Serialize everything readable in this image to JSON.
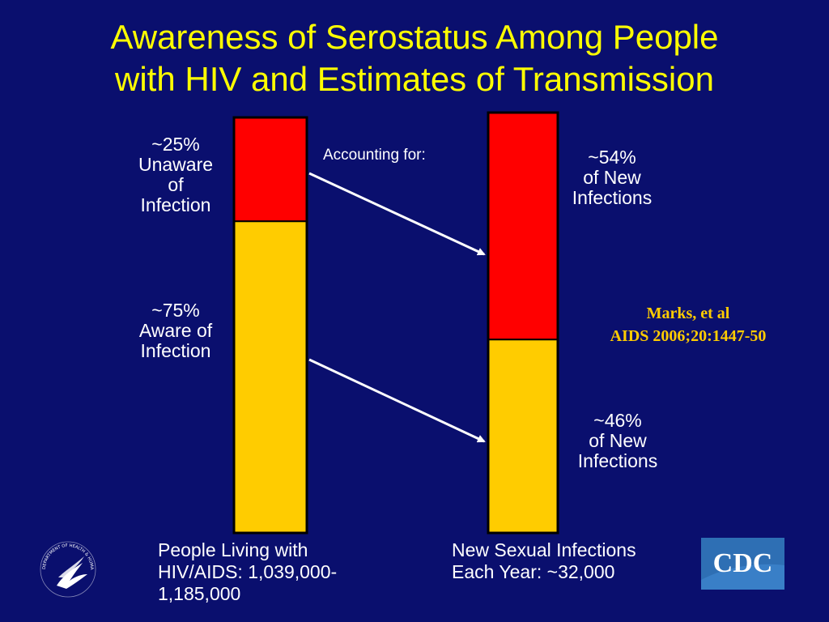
{
  "title": {
    "line1": "Awareness of Serostatus Among People",
    "line2": "with HIV and Estimates of Transmission"
  },
  "annotation": "Accounting for:",
  "citation": {
    "line1": "Marks, et al",
    "line2": "AIDS 2006;20:1447-50"
  },
  "logos": {
    "hhs_text": "DEPARTMENT OF HEALTH & HUMAN SERVICES · USA",
    "cdc_text": "CDC"
  },
  "colors": {
    "background": "#0a0f6e",
    "title": "#ffff00",
    "red_segment": "#ff0000",
    "yellow_segment": "#ffcc00",
    "citation": "#ffcc00"
  },
  "chart_data": {
    "type": "bar",
    "stacked": true,
    "normalized": true,
    "categories": [
      "People Living with HIV/AIDS: 1,039,000-1,185,000",
      "New Sexual Infections Each Year: ~32,000"
    ],
    "category_lines": [
      [
        "People Living with",
        "HIV/AIDS: 1,039,000-",
        "1,185,000"
      ],
      [
        "New Sexual Infections",
        "Each Year: ~32,000"
      ]
    ],
    "series": [
      {
        "color": "#ff0000",
        "values": [
          25,
          54
        ],
        "labels": [
          [
            "~25%",
            "Unaware",
            "of",
            "Infection"
          ],
          [
            "~54%",
            "of New",
            "Infections"
          ]
        ]
      },
      {
        "color": "#ffcc00",
        "values": [
          75,
          46
        ],
        "labels": [
          [
            "~75%",
            "Aware of",
            "Infection"
          ],
          [
            "~46%",
            "of New",
            "Infections"
          ]
        ]
      }
    ],
    "ylim": [
      0,
      100
    ],
    "axes_visible": false,
    "legend": "none"
  }
}
